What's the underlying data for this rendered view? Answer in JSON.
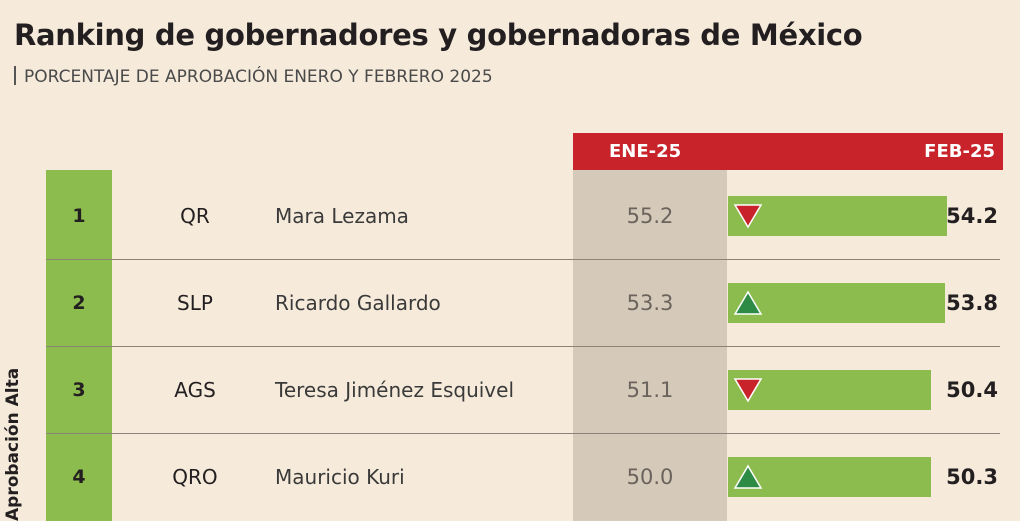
{
  "title": "Ranking de gobernadores y gobernadoras de México",
  "subtitle": "PORCENTAJE DE APROBACIÓN ENERO Y FEBRERO 2025",
  "category_label": "Aprobación Alta",
  "colors": {
    "header_red": "#c8232a",
    "bar_green": "#8cbc4d",
    "ene_column": "#d5c9ba",
    "up": "#2e8b46",
    "down": "#c8232a",
    "background": "#f6ebdb"
  },
  "chart_data": {
    "type": "bar",
    "columns": [
      "ENE-25",
      "FEB-25"
    ],
    "ylim": [
      0,
      57
    ],
    "rows": [
      {
        "rank": "1",
        "state": "QR",
        "name": "Mara Lezama",
        "ene": "55.2",
        "feb": "54.2",
        "trend": "down"
      },
      {
        "rank": "2",
        "state": "SLP",
        "name": "Ricardo Gallardo",
        "ene": "53.3",
        "feb": "53.8",
        "trend": "up"
      },
      {
        "rank": "3",
        "state": "AGS",
        "name": "Teresa Jiménez Esquivel",
        "ene": "51.1",
        "feb": "50.4",
        "trend": "down"
      },
      {
        "rank": "4",
        "state": "QRO",
        "name": "Mauricio Kuri",
        "ene": "50.0",
        "feb": "50.3",
        "trend": "up"
      }
    ]
  }
}
